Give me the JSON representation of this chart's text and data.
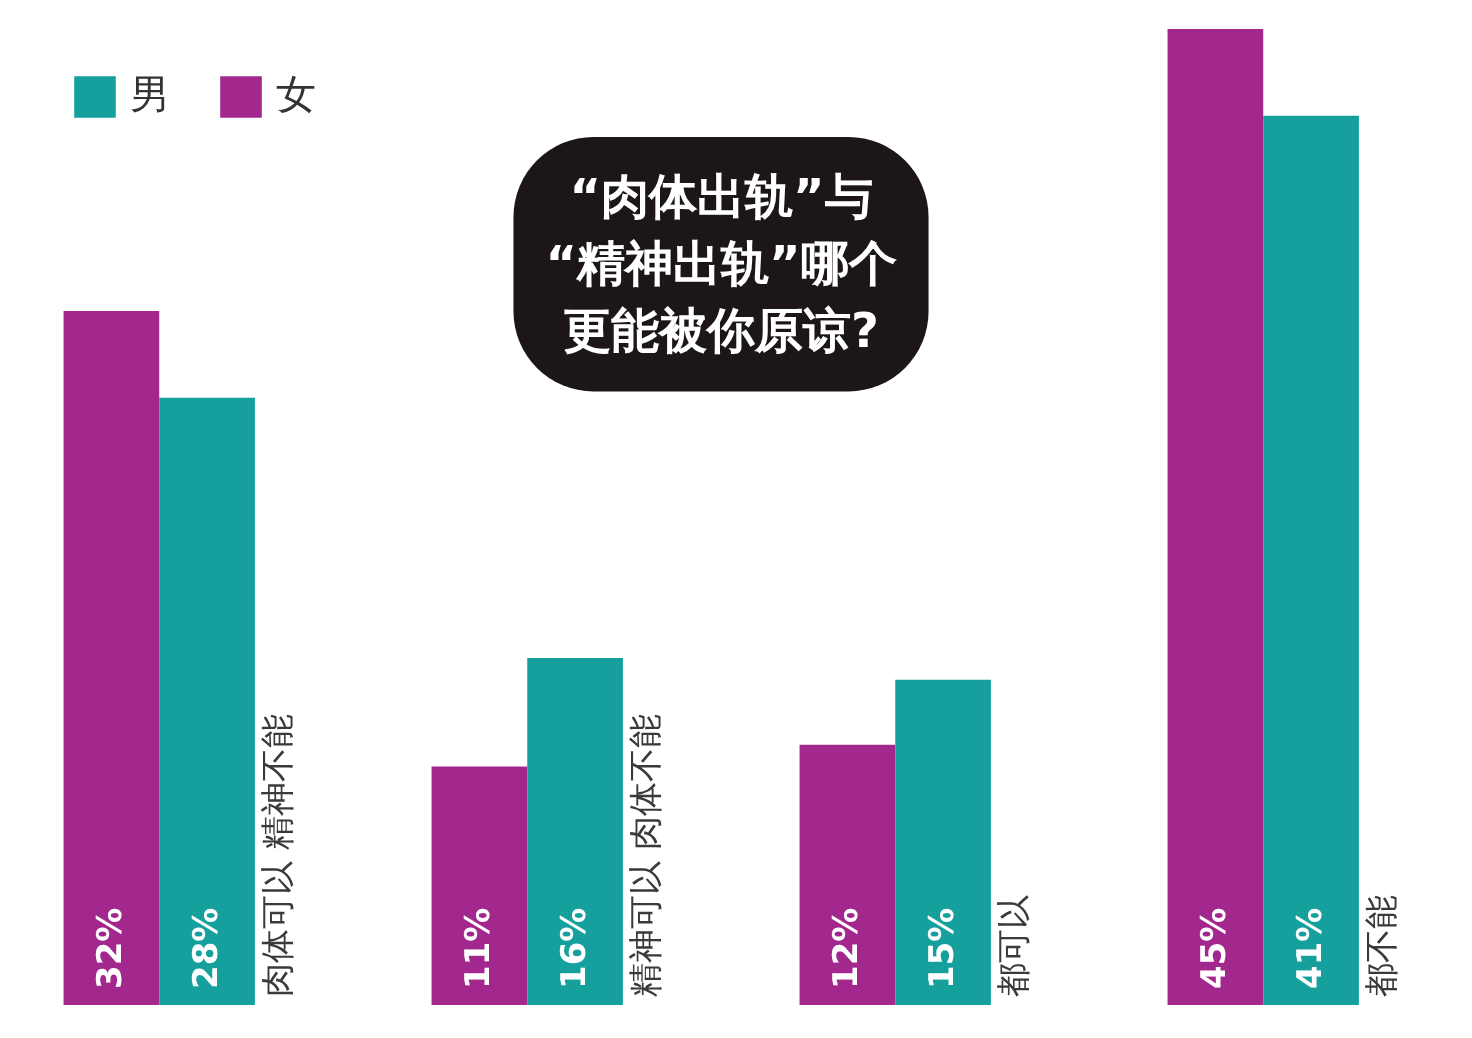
{
  "chart_data": {
    "type": "bar",
    "title": "“肉体出轨”与“精神出轨”哪个更能被你原谅?",
    "categories": [
      "肉体可以 精神不能",
      "精神可以 肉体不能",
      "都可以",
      "都不能"
    ],
    "series": [
      {
        "name": "女",
        "color": "#a3288e",
        "values": [
          32,
          11,
          12,
          45
        ],
        "value_labels": [
          "32%",
          "11%",
          "12%",
          "45%"
        ]
      },
      {
        "name": "男",
        "color": "#15a09e",
        "values": [
          28,
          16,
          15,
          41
        ],
        "value_labels": [
          "28%",
          "16%",
          "15%",
          "41%"
        ]
      }
    ],
    "legend": "top left"
  }
}
